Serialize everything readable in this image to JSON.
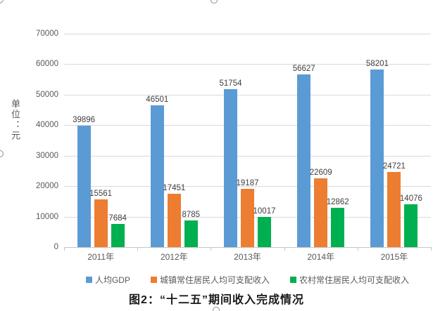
{
  "chart_data": {
    "type": "bar",
    "categories": [
      "2011年",
      "2012年",
      "2013年",
      "2014年",
      "2015年"
    ],
    "series": [
      {
        "name": "人均GDP",
        "color": "#5B9BD5",
        "values": [
          39896,
          46501,
          51754,
          56627,
          58201
        ]
      },
      {
        "name": "城镇常住居民人均可支配收入",
        "color": "#ED7D31",
        "values": [
          15561,
          17451,
          19187,
          22609,
          24721
        ]
      },
      {
        "name": "农村常住居民人均可支配收入",
        "color": "#00B050",
        "values": [
          7684,
          8785,
          10017,
          12862,
          14076
        ]
      }
    ],
    "title": "图2：“十二五”期间收入完成情况",
    "xlabel": "",
    "ylabel": "单位：元",
    "ylim": [
      0,
      70000
    ],
    "yticks": [
      0,
      10000,
      20000,
      30000,
      40000,
      50000,
      60000,
      70000
    ],
    "grid": "horizontal",
    "legend_position": "bottom",
    "data_labels": "above-bars",
    "colors": {
      "gridline": "#D9D9D9",
      "axis_line": "#C6C6C6",
      "tick_text": "#595959",
      "data_label_text": "#404040",
      "caption_text": "#1A1A1A"
    }
  }
}
